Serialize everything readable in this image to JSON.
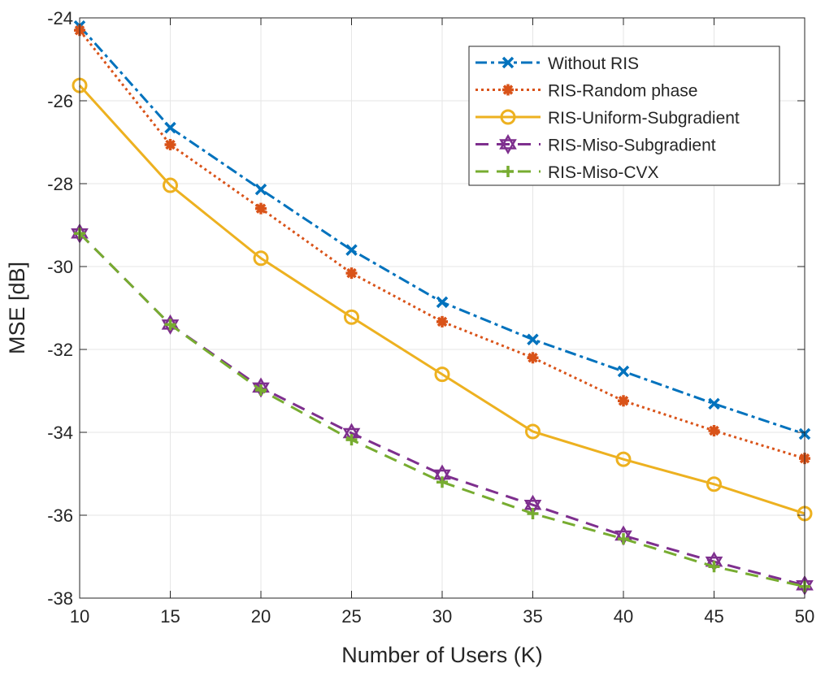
{
  "chart_data": {
    "type": "line",
    "title": "",
    "xlabel": "Number of Users (K)",
    "ylabel": "MSE [dB]",
    "xlim": [
      10,
      50
    ],
    "ylim": [
      -38,
      -24
    ],
    "xticks": [
      10,
      15,
      20,
      25,
      30,
      35,
      40,
      45,
      50
    ],
    "yticks": [
      -24,
      -26,
      -28,
      -30,
      -32,
      -34,
      -36,
      -38
    ],
    "grid": true,
    "legend_position": "top-right",
    "x": [
      10,
      15,
      20,
      25,
      30,
      35,
      40,
      45,
      50
    ],
    "series": [
      {
        "name": "Without RIS",
        "color": "#0072BD",
        "line": "dash-dot",
        "marker": "x",
        "values": [
          -24.2,
          -26.65,
          -28.14,
          -29.6,
          -30.86,
          -31.76,
          -32.53,
          -33.31,
          -34.04
        ]
      },
      {
        "name": "RIS-Random phase",
        "color": "#D95319",
        "line": "dotted",
        "marker": "asterisk",
        "values": [
          -24.3,
          -27.06,
          -28.6,
          -30.16,
          -31.33,
          -32.2,
          -33.24,
          -33.96,
          -34.63
        ]
      },
      {
        "name": "RIS-Uniform-Subgradient",
        "color": "#EDB120",
        "line": "solid",
        "marker": "circle",
        "values": [
          -25.63,
          -28.04,
          -29.8,
          -31.22,
          -32.6,
          -33.98,
          -34.65,
          -35.25,
          -35.96
        ]
      },
      {
        "name": "RIS-Miso-Subgradient",
        "color": "#7E2F8E",
        "line": "dashed",
        "marker": "hexagram",
        "values": [
          -29.2,
          -31.4,
          -32.92,
          -34.02,
          -35.02,
          -35.75,
          -36.49,
          -37.12,
          -37.69
        ]
      },
      {
        "name": "RIS-Miso-CVX",
        "color": "#77AC30",
        "line": "dashed",
        "marker": "plus",
        "values": [
          -29.2,
          -31.4,
          -32.98,
          -34.18,
          -35.2,
          -35.96,
          -36.57,
          -37.24,
          -37.72
        ]
      }
    ]
  }
}
